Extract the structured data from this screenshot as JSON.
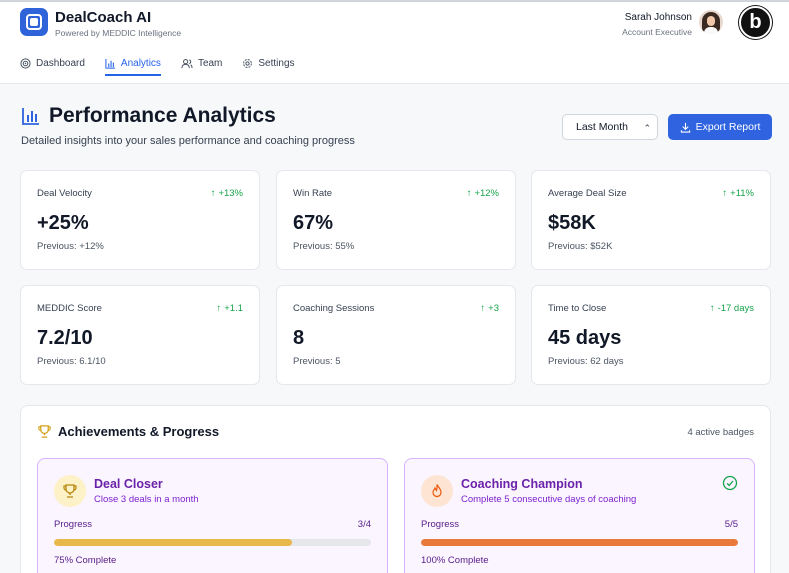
{
  "app": {
    "title": "DealCoach AI",
    "subtitle": "Powered by MEDDIC Intelligence",
    "brand_badge": "b"
  },
  "user": {
    "name": "Sarah Johnson",
    "role": "Account Executive"
  },
  "nav": [
    {
      "label": "Dashboard",
      "icon": "target-icon",
      "active": false
    },
    {
      "label": "Analytics",
      "icon": "bar-chart-icon",
      "active": true
    },
    {
      "label": "Team",
      "icon": "users-icon",
      "active": false
    },
    {
      "label": "Settings",
      "icon": "gear-icon",
      "active": false
    }
  ],
  "page": {
    "title": "Performance Analytics",
    "subtitle": "Detailed insights into your sales performance and coaching progress",
    "period_selected": "Last Month",
    "export_label": "Export Report"
  },
  "metrics": [
    {
      "label": "Deal Velocity",
      "delta": "+13%",
      "value": "+25%",
      "previous": "Previous: +12%"
    },
    {
      "label": "Win Rate",
      "delta": "+12%",
      "value": "67%",
      "previous": "Previous: 55%"
    },
    {
      "label": "Average Deal Size",
      "delta": "+11%",
      "value": "$58K",
      "previous": "Previous: $52K"
    },
    {
      "label": "MEDDIC Score",
      "delta": "+1.1",
      "value": "7.2/10",
      "previous": "Previous: 6.1/10"
    },
    {
      "label": "Coaching Sessions",
      "delta": "+3",
      "value": "8",
      "previous": "Previous: 5"
    },
    {
      "label": "Time to Close",
      "delta": "-17 days",
      "value": "45 days",
      "previous": "Previous: 62 days"
    }
  ],
  "achievements": {
    "title": "Achievements & Progress",
    "count": "4 active badges",
    "badges": [
      {
        "name": "Deal Closer",
        "description": "Close 3 deals in a month",
        "progress_label": "Progress",
        "progress_count": "3/4",
        "progress_fraction": 0.75,
        "progress_text": "75% Complete",
        "icon": "trophy-icon",
        "bar_color": "#e8b84a",
        "icon_bg": "#fdf1c7",
        "completed": false
      },
      {
        "name": "Coaching Champion",
        "description": "Complete 5 consecutive days of coaching",
        "progress_label": "Progress",
        "progress_count": "5/5",
        "progress_fraction": 1.0,
        "progress_text": "100% Complete",
        "icon": "flame-icon",
        "bar_color": "#e8793a",
        "icon_bg": "#fde4d3",
        "completed": true
      }
    ]
  },
  "colors": {
    "accent": "#2f63e0",
    "positive": "#16a34a",
    "badge_border": "#d8b4fe"
  }
}
